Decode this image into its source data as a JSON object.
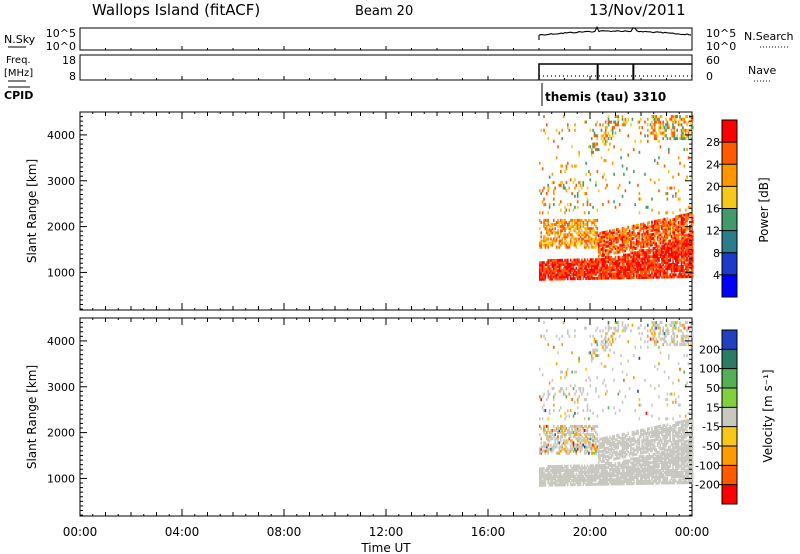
{
  "header": {
    "station": "Wallops Island (fitACF)",
    "beam": "Beam 20",
    "date": "13/Nov/2011"
  },
  "top_panels": {
    "nsky": {
      "label": "N.Sky",
      "ticks": [
        "10^5",
        "10^0"
      ]
    },
    "nsearch": {
      "label": "N.Search",
      "ticks": [
        "10^5",
        "10^0"
      ]
    },
    "freq": {
      "label": "Freq.",
      "unit": "[MHz]",
      "ticks": [
        "18",
        "8"
      ]
    },
    "nave": {
      "label": "Nave",
      "ticks": [
        "60",
        "0"
      ]
    },
    "cpid": {
      "label": "CPID",
      "value": "themis (tau) 3310"
    }
  },
  "chart_data": {
    "type": "heatmap",
    "xlabel": "Time UT",
    "x_ticks": [
      "00:00",
      "04:00",
      "08:00",
      "12:00",
      "16:00",
      "20:00",
      "00:00"
    ],
    "xlim_hours": [
      0,
      24
    ],
    "data_start_hour": 18.0,
    "cpid_change_hours": [
      20.3,
      21.7
    ],
    "panels": [
      {
        "name": "power",
        "ylabel": "Slant Range [km]",
        "y_ticks": [
          "1000",
          "2000",
          "3000",
          "4000"
        ],
        "ylim_km": [
          180,
          4500
        ],
        "colorbar": {
          "label": "Power [dB]",
          "ticks": [
            "28",
            "24",
            "20",
            "16",
            "12",
            "8",
            "4"
          ],
          "colors": [
            "#ff0000",
            "#ff5a00",
            "#ff9600",
            "#f7c81a",
            "#409a6a",
            "#2a7d8c",
            "#1a3cc8",
            "#0000ff"
          ]
        }
      },
      {
        "name": "velocity",
        "ylabel": "Slant Range [km]",
        "y_ticks": [
          "1000",
          "2000",
          "3000",
          "4000"
        ],
        "ylim_km": [
          180,
          4500
        ],
        "colorbar": {
          "label": "Velocity [m s⁻¹]",
          "ticks": [
            "200",
            "100",
            "50",
            "15",
            "-15",
            "-50",
            "-100",
            "-200"
          ],
          "colors": [
            "#2040c0",
            "#2a7a64",
            "#55b055",
            "#80d040",
            "#c8c8c0",
            "#f7c81a",
            "#ff9a00",
            "#ff5a00",
            "#ff0000"
          ]
        }
      }
    ]
  }
}
